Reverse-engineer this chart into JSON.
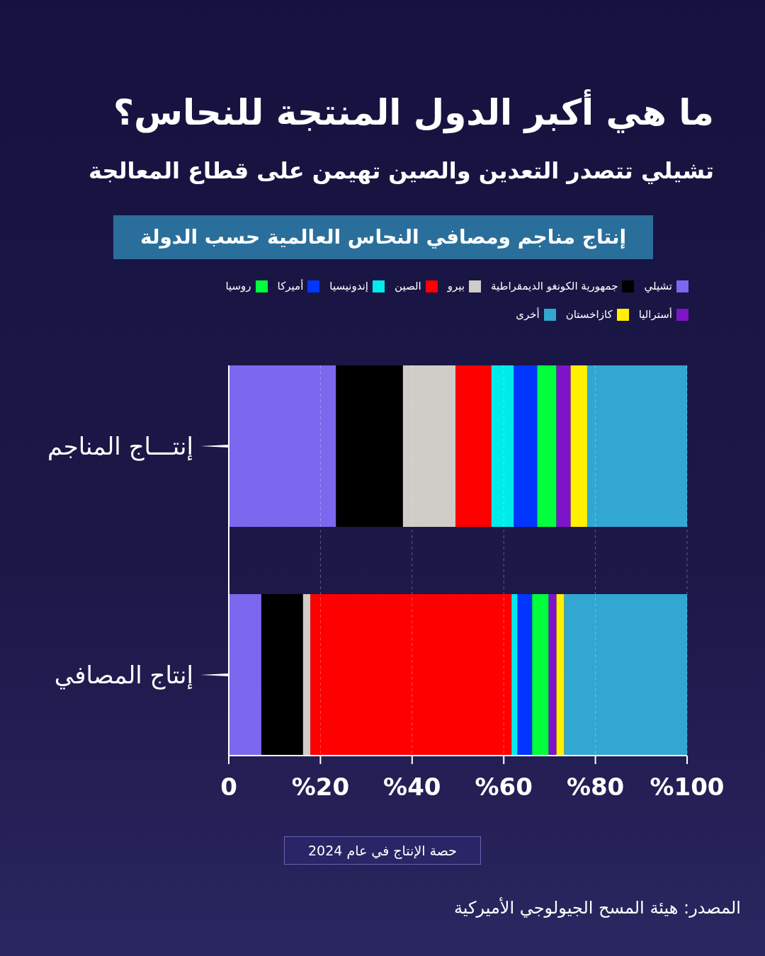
{
  "chart_data": {
    "type": "bar",
    "orientation": "horizontal",
    "stacked": true,
    "title": "ما هي أكبر الدول المنتجة للنحاس؟",
    "subtitle": "تشيلي تتصدر التعدين والصين تهيمن على قطاع المعالجة",
    "annotations": [
      "إنتاج مناجم ومصافي النحاس العالمية حسب الدولة",
      "المصدر: هيئة المسح الجيولوجي الأميركية"
    ],
    "xlabel": "حصة الإنتاج في عام 2024",
    "categories": [
      "إنتـــاج المناجم",
      "إنتاج المصافي"
    ],
    "series": [
      {
        "name": "تشيلي",
        "color": "#7b68ee",
        "values": [
          23.4,
          7.1
        ]
      },
      {
        "name": "جمهورية الكونغو الديمقراطية",
        "color": "#000000",
        "values": [
          14.6,
          9.1
        ]
      },
      {
        "name": "بيرو",
        "color": "#d0cdc8",
        "values": [
          11.5,
          1.6
        ]
      },
      {
        "name": "الصين",
        "color": "#ff0000",
        "values": [
          7.8,
          43.9
        ]
      },
      {
        "name": "إندونيسيا",
        "color": "#00ebeb",
        "values": [
          4.9,
          1.3
        ]
      },
      {
        "name": "أميركا",
        "color": "#0036ff",
        "values": [
          5.1,
          3.2
        ]
      },
      {
        "name": "روسيا",
        "color": "#00ff3c",
        "values": [
          4.2,
          3.6
        ]
      },
      {
        "name": "أستراليا",
        "color": "#7d14c8",
        "values": [
          3.1,
          1.7
        ]
      },
      {
        "name": "كازاخستان",
        "color": "#fff000",
        "values": [
          3.6,
          1.7
        ]
      },
      {
        "name": "أخرى",
        "color": "#31a7d2",
        "values": [
          21.8,
          26.8
        ]
      }
    ],
    "xlim": [
      0,
      100
    ],
    "xticks": [
      0,
      {
        "value": 20,
        "label": "%20"
      },
      {
        "value": 40,
        "label": "%40"
      },
      {
        "value": 60,
        "label": "%60"
      },
      {
        "value": 80,
        "label": "%80"
      },
      {
        "value": 100,
        "label": "%100"
      }
    ],
    "grid": "x",
    "legend": "top"
  }
}
